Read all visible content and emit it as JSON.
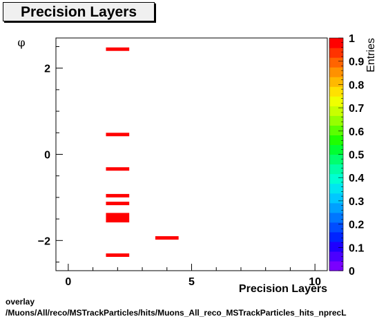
{
  "page_title": "Precision Layers",
  "footer": {
    "line1": "overlay",
    "line2": "/Muons/All/reco/MSTrackParticles/hits/Muons_All_reco_MSTrackParticles_hits_nprecL"
  },
  "chart_data": {
    "type": "heatmap",
    "title": "Precision Layers",
    "xlabel": "Precision Layers",
    "ylabel": "φ",
    "zlabel": "Entries",
    "xlim": [
      -0.5,
      10.5
    ],
    "ylim": [
      -2.7,
      2.7
    ],
    "zlim": [
      0,
      1
    ],
    "x_ticks": [
      0,
      5,
      10
    ],
    "y_ticks": [
      -2,
      0,
      2
    ],
    "z_ticks": [
      0,
      0.1,
      0.2,
      0.3,
      0.4,
      0.5,
      0.6,
      0.7,
      0.8,
      0.9,
      1
    ],
    "bins": [
      {
        "x": [
          1.5,
          2.5
        ],
        "y": [
          2.4,
          2.48
        ],
        "value": 1
      },
      {
        "x": [
          1.5,
          2.5
        ],
        "y": [
          0.42,
          0.5
        ],
        "value": 1
      },
      {
        "x": [
          1.5,
          2.5
        ],
        "y": [
          -0.38,
          -0.3
        ],
        "value": 1
      },
      {
        "x": [
          1.5,
          2.5
        ],
        "y": [
          -1.0,
          -0.92
        ],
        "value": 1
      },
      {
        "x": [
          1.5,
          2.5
        ],
        "y": [
          -1.18,
          -1.1
        ],
        "value": 1
      },
      {
        "x": [
          1.5,
          2.5
        ],
        "y": [
          -1.58,
          -1.36
        ],
        "value": 1
      },
      {
        "x": [
          3.5,
          4.5
        ],
        "y": [
          -1.98,
          -1.9
        ],
        "value": 1
      },
      {
        "x": [
          1.5,
          2.5
        ],
        "y": [
          -2.38,
          -2.3
        ],
        "value": 1
      }
    ],
    "palette_colors": [
      "#7a00ff",
      "#4b00ff",
      "#1e00ff",
      "#0024ff",
      "#004dff",
      "#0077ff",
      "#00a0ff",
      "#00c8ff",
      "#00e6f0",
      "#00ffd2",
      "#00ffa6",
      "#00ff6e",
      "#00ff32",
      "#1eff00",
      "#5aff00",
      "#96ff00",
      "#c8ff00",
      "#f0ff00",
      "#ffe100",
      "#ffb900",
      "#ff9100",
      "#ff6400",
      "#ff3200",
      "#ff0000"
    ],
    "bin_color": "#ff0000"
  }
}
